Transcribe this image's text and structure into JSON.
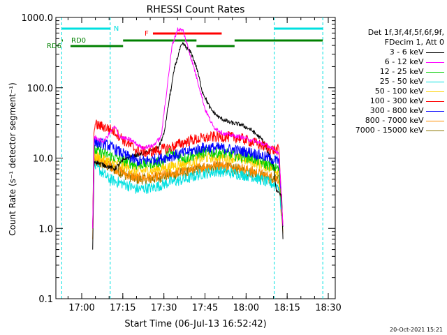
{
  "chart_data": {
    "type": "line",
    "title": "RHESSI Count Rates",
    "xlabel": "Start Time (06-Jul-13 16:52:42)",
    "ylabel": "Count Rate (s⁻¹ detector segment⁻¹)",
    "yscale": "log",
    "ylim": [
      0.1,
      1000
    ],
    "xlim_minutes": [
      16.5,
      30.5
    ],
    "xlim": [
      "16:52:42",
      "18:30:30"
    ],
    "x_ticks": [
      "17:00",
      "17:15",
      "17:30",
      "17:45",
      "18:00",
      "18:15",
      "18:30"
    ],
    "y_ticks": [
      "0.1",
      "1.0",
      "10.0",
      "100.0",
      "1000.0"
    ],
    "legend": {
      "placement": "top-right",
      "header": [
        "Det 1f,3f,4f,5f,6f,9f,",
        "FDecim 1, Att 0"
      ]
    },
    "series": [
      {
        "name": "3 - 6 keV",
        "color": "#000000",
        "points": [
          [
            "17:04",
            0.5
          ],
          [
            "17:04:30",
            9
          ],
          [
            "17:08",
            8
          ],
          [
            "17:12",
            7
          ],
          [
            "17:16",
            10
          ],
          [
            "17:20",
            11
          ],
          [
            "17:24",
            12
          ],
          [
            "17:28",
            14
          ],
          [
            "17:30",
            22
          ],
          [
            "17:32",
            70
          ],
          [
            "17:34",
            200
          ],
          [
            "17:36",
            370
          ],
          [
            "17:37",
            420
          ],
          [
            "17:40",
            310
          ],
          [
            "17:42",
            190
          ],
          [
            "17:44",
            90
          ],
          [
            "17:47",
            50
          ],
          [
            "17:50",
            38
          ],
          [
            "17:54",
            32
          ],
          [
            "17:58",
            30
          ],
          [
            "18:02",
            25
          ],
          [
            "18:06",
            18
          ],
          [
            "18:10",
            8
          ],
          [
            "18:11",
            3.5
          ],
          [
            "18:13",
            3
          ],
          [
            "18:13:30",
            0.6
          ]
        ]
      },
      {
        "name": "6 - 12 keV",
        "color": "#ff00ff",
        "points": [
          [
            "17:04",
            1
          ],
          [
            "17:04:30",
            20
          ],
          [
            "17:08",
            17
          ],
          [
            "17:10",
            22
          ],
          [
            "17:12",
            28
          ],
          [
            "17:14",
            20
          ],
          [
            "17:18",
            18
          ],
          [
            "17:22",
            14
          ],
          [
            "17:26",
            15
          ],
          [
            "17:29",
            20
          ],
          [
            "17:31",
            90
          ],
          [
            "17:33",
            400
          ],
          [
            "17:35",
            680
          ],
          [
            "17:37",
            650
          ],
          [
            "17:39",
            350
          ],
          [
            "17:41",
            190
          ],
          [
            "17:43",
            100
          ],
          [
            "17:45",
            50
          ],
          [
            "17:48",
            28
          ],
          [
            "17:52",
            22
          ],
          [
            "17:58",
            20
          ],
          [
            "18:04",
            17
          ],
          [
            "18:08",
            15
          ],
          [
            "18:10",
            13
          ],
          [
            "18:12",
            12
          ],
          [
            "18:13:30",
            1
          ]
        ]
      },
      {
        "name": "12 - 25 keV",
        "color": "#00d000",
        "points": [
          [
            "17:04",
            1
          ],
          [
            "17:04:30",
            13
          ],
          [
            "17:10",
            11
          ],
          [
            "17:16",
            9
          ],
          [
            "17:20",
            8
          ],
          [
            "17:26",
            8.5
          ],
          [
            "17:30",
            9
          ],
          [
            "17:32",
            12
          ],
          [
            "17:34",
            11
          ],
          [
            "17:38",
            10
          ],
          [
            "17:44",
            12
          ],
          [
            "17:50",
            12
          ],
          [
            "17:56",
            11
          ],
          [
            "18:02",
            10
          ],
          [
            "18:08",
            8
          ],
          [
            "18:12",
            7
          ],
          [
            "18:13:30",
            1
          ]
        ]
      },
      {
        "name": "25 - 50 keV",
        "color": "#00e0e0",
        "points": [
          [
            "17:04",
            1
          ],
          [
            "17:04:30",
            8
          ],
          [
            "17:10",
            5
          ],
          [
            "17:16",
            4.2
          ],
          [
            "17:20",
            3.6
          ],
          [
            "17:26",
            3.8
          ],
          [
            "17:32",
            4.5
          ],
          [
            "17:38",
            5
          ],
          [
            "17:44",
            6
          ],
          [
            "17:50",
            6.5
          ],
          [
            "17:56",
            6
          ],
          [
            "18:02",
            5.5
          ],
          [
            "18:08",
            4.5
          ],
          [
            "18:12",
            4
          ],
          [
            "18:13:30",
            1
          ]
        ]
      },
      {
        "name": "50 - 100 keV",
        "color": "#ffd000",
        "points": [
          [
            "17:04",
            1
          ],
          [
            "17:04:30",
            11
          ],
          [
            "17:10",
            9
          ],
          [
            "17:16",
            7.5
          ],
          [
            "17:20",
            6.5
          ],
          [
            "17:26",
            6.8
          ],
          [
            "17:32",
            7.5
          ],
          [
            "17:38",
            8.5
          ],
          [
            "17:44",
            10
          ],
          [
            "17:50",
            10.5
          ],
          [
            "17:56",
            10
          ],
          [
            "18:02",
            9
          ],
          [
            "18:08",
            7.5
          ],
          [
            "18:12",
            6.5
          ],
          [
            "18:13:30",
            1
          ]
        ]
      },
      {
        "name": "100 - 300 keV",
        "color": "#ff0000",
        "points": [
          [
            "17:04",
            1
          ],
          [
            "17:04:30",
            30
          ],
          [
            "17:08",
            28
          ],
          [
            "17:12",
            24
          ],
          [
            "17:16",
            17
          ],
          [
            "17:20",
            13
          ],
          [
            "17:24",
            12
          ],
          [
            "17:28",
            13
          ],
          [
            "17:32",
            14
          ],
          [
            "17:36",
            16
          ],
          [
            "17:40",
            18
          ],
          [
            "17:44",
            19
          ],
          [
            "17:48",
            20
          ],
          [
            "17:54",
            20
          ],
          [
            "17:58",
            19
          ],
          [
            "18:02",
            17
          ],
          [
            "18:06",
            15
          ],
          [
            "18:10",
            13
          ],
          [
            "18:12",
            13
          ],
          [
            "18:13:30",
            1
          ]
        ]
      },
      {
        "name": "300 - 800 keV",
        "color": "#0000ff",
        "points": [
          [
            "17:04",
            1
          ],
          [
            "17:04:30",
            17
          ],
          [
            "17:10",
            15
          ],
          [
            "17:16",
            11
          ],
          [
            "17:20",
            9
          ],
          [
            "17:26",
            9.5
          ],
          [
            "17:32",
            10.5
          ],
          [
            "17:38",
            12
          ],
          [
            "17:44",
            14
          ],
          [
            "17:50",
            14
          ],
          [
            "17:56",
            13
          ],
          [
            "18:02",
            12
          ],
          [
            "18:08",
            10
          ],
          [
            "18:12",
            9
          ],
          [
            "18:13:30",
            1
          ]
        ]
      },
      {
        "name": "800 - 7000 keV",
        "color": "#ff8c00",
        "points": [
          [
            "17:04",
            0.7
          ],
          [
            "17:04:30",
            10
          ],
          [
            "17:10",
            8
          ],
          [
            "17:16",
            6
          ],
          [
            "17:20",
            5.2
          ],
          [
            "17:26",
            5.3
          ],
          [
            "17:32",
            6
          ],
          [
            "17:38",
            6.5
          ],
          [
            "17:44",
            7.5
          ],
          [
            "17:50",
            8
          ],
          [
            "17:56",
            7.5
          ],
          [
            "18:02",
            6.5
          ],
          [
            "18:08",
            5.5
          ],
          [
            "18:12",
            5
          ],
          [
            "18:13:30",
            0.8
          ]
        ]
      },
      {
        "name": "7000 - 15000 keV",
        "color": "#8b7500",
        "points": [
          [
            "17:04",
            1
          ],
          [
            "17:04:30",
            9
          ],
          [
            "17:10",
            7.5
          ],
          [
            "17:16",
            5.8
          ],
          [
            "17:20",
            5
          ],
          [
            "17:26",
            5.1
          ],
          [
            "17:32",
            5.7
          ],
          [
            "17:38",
            6.2
          ],
          [
            "17:44",
            7
          ],
          [
            "17:50",
            7.5
          ],
          [
            "17:56",
            7
          ],
          [
            "18:02",
            6.2
          ],
          [
            "18:08",
            5.2
          ],
          [
            "18:12",
            4.8
          ],
          [
            "18:13:30",
            1
          ]
        ]
      }
    ],
    "annotations": {
      "night_label": "N",
      "night_color": "#00e0e0",
      "night_intervals": [
        [
          "16:52:42",
          "17:10:24"
        ],
        [
          "18:10:18",
          "18:28:00"
        ]
      ],
      "flare_label": "F",
      "flare_color": "#ff0000",
      "flare_interval": [
        "17:26:00",
        "17:51:06"
      ],
      "rd0_label": "RD0",
      "rd6_label": "RD6",
      "decim_color": "#008000",
      "rd0_intervals": [
        [
          "16:52:42",
          "16:53:06"
        ],
        [
          "17:15:06",
          "17:41:54"
        ],
        [
          "17:55:48",
          "18:28:00"
        ]
      ],
      "rd6_intervals": [
        [
          "16:55:54",
          "17:15:06"
        ],
        [
          "17:41:54",
          "17:55:48"
        ]
      ]
    }
  },
  "footer": {
    "timestamp": "20-Oct-2021 15:21"
  }
}
